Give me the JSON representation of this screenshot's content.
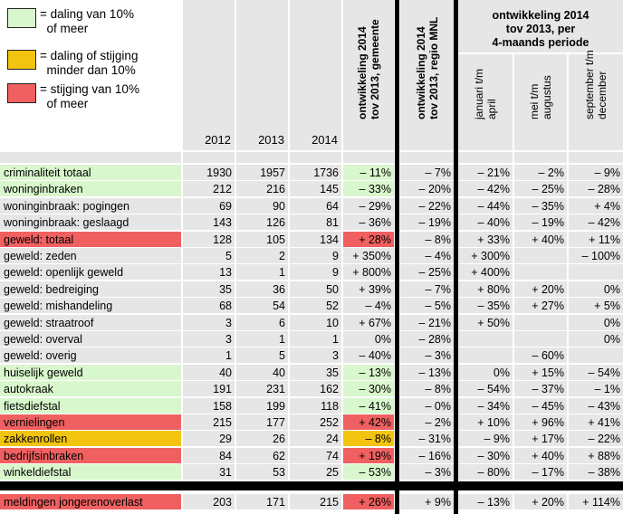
{
  "legend": [
    {
      "color": "#d9f7cc",
      "text": "= daling van 10%\n  of meer"
    },
    {
      "color": "#f2c40f",
      "text": "= daling of stijging\n  minder dan 10%"
    },
    {
      "color": "#f06060",
      "text": "= stijging van 10%\n  of meer"
    }
  ],
  "headers": {
    "y2012": "2012",
    "y2013": "2013",
    "y2014": "2014",
    "gemeente": "ontwikkeling 2014\ntov 2013, gemeente",
    "regio": "ontwikkeling 2014\ntov 2013, regio MNL",
    "group": "ontwikkeling 2014\ntov 2013, per\n4-maands periode",
    "p1": "januari t/m\napril",
    "p2": "mei t/m\naugustus",
    "p3": "september t/m\ndecember"
  },
  "rows": [
    {
      "label": "criminaliteit totaal",
      "v2012": "1930",
      "v2013": "1957",
      "v2014": "1736",
      "gem": "– 11%",
      "reg": "– 7%",
      "p1": "– 21%",
      "p2": "– 2%",
      "p3": "– 9%",
      "color": "green"
    },
    {
      "label": "woninginbraken",
      "v2012": "212",
      "v2013": "216",
      "v2014": "145",
      "gem": "– 33%",
      "reg": "– 20%",
      "p1": "– 42%",
      "p2": "– 25%",
      "p3": "– 28%",
      "color": "green"
    },
    {
      "label": "woninginbraak: pogingen",
      "v2012": "69",
      "v2013": "90",
      "v2014": "64",
      "gem": "– 29%",
      "reg": "– 22%",
      "p1": "– 44%",
      "p2": "– 35%",
      "p3": "+ 4%",
      "color": ""
    },
    {
      "label": "woninginbraak: geslaagd",
      "v2012": "143",
      "v2013": "126",
      "v2014": "81",
      "gem": "– 36%",
      "reg": "– 19%",
      "p1": "– 40%",
      "p2": "– 19%",
      "p3": "– 42%",
      "color": ""
    },
    {
      "label": "geweld: totaal",
      "v2012": "128",
      "v2013": "105",
      "v2014": "134",
      "gem": "+ 28%",
      "reg": "– 8%",
      "p1": "+ 33%",
      "p2": "+ 40%",
      "p3": "+ 11%",
      "color": "red"
    },
    {
      "label": "geweld: zeden",
      "v2012": "5",
      "v2013": "2",
      "v2014": "9",
      "gem": "+ 350%",
      "reg": "– 4%",
      "p1": "+ 300%",
      "p2": "",
      "p3": "– 100%",
      "color": ""
    },
    {
      "label": "geweld: openlijk geweld",
      "v2012": "13",
      "v2013": "1",
      "v2014": "9",
      "gem": "+ 800%",
      "reg": "– 25%",
      "p1": "+ 400%",
      "p2": "",
      "p3": "",
      "color": ""
    },
    {
      "label": "geweld: bedreiging",
      "v2012": "35",
      "v2013": "36",
      "v2014": "50",
      "gem": "+ 39%",
      "reg": "– 7%",
      "p1": "+ 80%",
      "p2": "+ 20%",
      "p3": "0%",
      "color": ""
    },
    {
      "label": "geweld: mishandeling",
      "v2012": "68",
      "v2013": "54",
      "v2014": "52",
      "gem": "– 4%",
      "reg": "– 5%",
      "p1": "– 35%",
      "p2": "+ 27%",
      "p3": "+ 5%",
      "color": ""
    },
    {
      "label": "geweld: straatroof",
      "v2012": "3",
      "v2013": "6",
      "v2014": "10",
      "gem": "+ 67%",
      "reg": "– 21%",
      "p1": "+ 50%",
      "p2": "",
      "p3": "0%",
      "color": ""
    },
    {
      "label": "geweld: overval",
      "v2012": "3",
      "v2013": "1",
      "v2014": "1",
      "gem": "0%",
      "reg": "– 28%",
      "p1": "",
      "p2": "",
      "p3": "0%",
      "color": ""
    },
    {
      "label": "geweld: overig",
      "v2012": "1",
      "v2013": "5",
      "v2014": "3",
      "gem": "– 40%",
      "reg": "– 3%",
      "p1": "",
      "p2": "– 60%",
      "p3": "",
      "color": ""
    },
    {
      "label": "huiselijk geweld",
      "v2012": "40",
      "v2013": "40",
      "v2014": "35",
      "gem": "– 13%",
      "reg": "– 13%",
      "p1": "0%",
      "p2": "+ 15%",
      "p3": "– 54%",
      "color": "green"
    },
    {
      "label": "autokraak",
      "v2012": "191",
      "v2013": "231",
      "v2014": "162",
      "gem": "– 30%",
      "reg": "– 8%",
      "p1": "– 54%",
      "p2": "– 37%",
      "p3": "– 1%",
      "color": "green"
    },
    {
      "label": "fietsdiefstal",
      "v2012": "158",
      "v2013": "199",
      "v2014": "118",
      "gem": "– 41%",
      "reg": "– 0%",
      "p1": "– 34%",
      "p2": "– 45%",
      "p3": "– 43%",
      "color": "green"
    },
    {
      "label": "vernielingen",
      "v2012": "215",
      "v2013": "177",
      "v2014": "252",
      "gem": "+ 42%",
      "reg": "– 2%",
      "p1": "+ 10%",
      "p2": "+ 96%",
      "p3": "+ 41%",
      "color": "red"
    },
    {
      "label": "zakkenrollen",
      "v2012": "29",
      "v2013": "26",
      "v2014": "24",
      "gem": "– 8%",
      "reg": "– 31%",
      "p1": "– 9%",
      "p2": "+ 17%",
      "p3": "– 22%",
      "color": "amber"
    },
    {
      "label": "bedrijfsinbraken",
      "v2012": "84",
      "v2013": "62",
      "v2014": "74",
      "gem": "+ 19%",
      "reg": "– 16%",
      "p1": "– 30%",
      "p2": "+ 40%",
      "p3": "+ 88%",
      "color": "red"
    },
    {
      "label": "winkeldiefstal",
      "v2012": "31",
      "v2013": "53",
      "v2014": "25",
      "gem": "– 53%",
      "reg": "– 3%",
      "p1": "– 80%",
      "p2": "– 17%",
      "p3": "– 38%",
      "color": "green"
    }
  ],
  "last_row": {
    "label": "meldingen jongerenoverlast",
    "v2012": "203",
    "v2013": "171",
    "v2014": "215",
    "gem": "+ 26%",
    "reg": "+ 9%",
    "p1": "– 13%",
    "p2": "+ 20%",
    "p3": "+ 114%",
    "color": "red"
  }
}
